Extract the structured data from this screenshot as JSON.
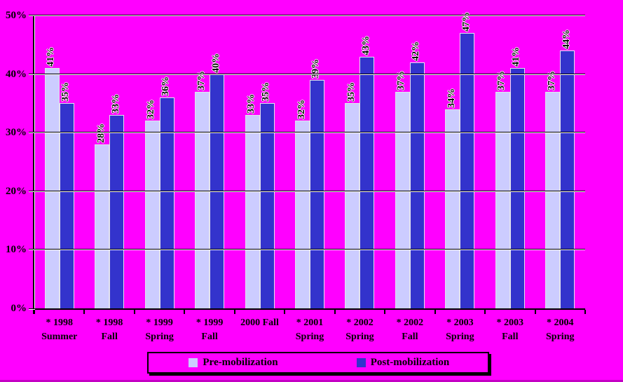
{
  "chart_data": {
    "type": "bar",
    "title": "",
    "categories": [
      [
        "* 1998",
        "Summer"
      ],
      [
        "* 1998",
        "Fall"
      ],
      [
        "* 1999",
        "Spring"
      ],
      [
        "* 1999",
        "Fall"
      ],
      [
        "2000 Fall"
      ],
      [
        "* 2001",
        "Spring"
      ],
      [
        "* 2002",
        "Spring"
      ],
      [
        "* 2002",
        "Fall"
      ],
      [
        "* 2003",
        "Spring"
      ],
      [
        "* 2003",
        "Fall"
      ],
      [
        "* 2004",
        "Spring"
      ]
    ],
    "series": [
      {
        "name": "Pre-mobilization",
        "color": "#ccccff",
        "values": [
          41,
          28,
          32,
          37,
          33,
          32,
          35,
          37,
          34,
          37,
          37
        ]
      },
      {
        "name": "Post-mobilization",
        "color": "#3333cc",
        "values": [
          35,
          33,
          36,
          40,
          35,
          39,
          43,
          42,
          47,
          41,
          44
        ]
      }
    ],
    "data_label_suffix": "%",
    "y_axis": {
      "min": 0,
      "max": 50,
      "step": 10,
      "tick_labels": [
        "0%",
        "10%",
        "20%",
        "30%",
        "40%",
        "50%"
      ]
    },
    "grid": true,
    "legend_position": "bottom",
    "colors": {
      "background": "#ff00ff",
      "gridline": "#000000",
      "gridline_highlight": "#ffffff",
      "axis": "#000000",
      "label_text": "#000000",
      "label_halo": "#ffffff",
      "bottom_strip": "#c400c4"
    }
  }
}
